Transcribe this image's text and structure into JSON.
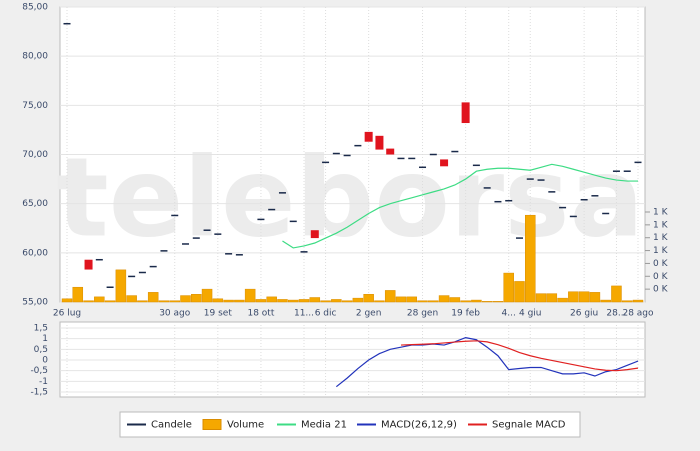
{
  "watermark": "teleborsa",
  "chart_data": [
    {
      "type": "candlestick",
      "categories": [
        "26 lug",
        null,
        null,
        null,
        null,
        null,
        null,
        null,
        null,
        null,
        "30 ago",
        null,
        null,
        null,
        "19 set",
        null,
        null,
        null,
        "18 ott",
        null,
        null,
        null,
        "11...",
        null,
        "6 dic",
        null,
        null,
        null,
        "2 gen",
        null,
        null,
        null,
        null,
        "28 gen",
        null,
        null,
        null,
        "19 feb",
        null,
        null,
        null,
        "4...",
        null,
        "4 giu",
        null,
        null,
        null,
        null,
        "26 giu",
        null,
        null,
        "28...",
        null,
        "28 ago"
      ],
      "ylim": [
        55,
        85
      ],
      "yticks": [
        {
          "value": 55,
          "label": "55,00"
        },
        {
          "value": 60,
          "label": "60,00"
        },
        {
          "value": 65,
          "label": "65,00"
        },
        {
          "value": 70,
          "label": "70,00"
        },
        {
          "value": 75,
          "label": "75,00"
        },
        {
          "value": 80,
          "label": "80,00"
        },
        {
          "value": 85,
          "label": "85,00"
        }
      ],
      "y2lim": [
        0,
        1400
      ],
      "y2ticks": [
        {
          "value": 200,
          "label": "0 K"
        },
        {
          "value": 400,
          "label": "0 K"
        },
        {
          "value": 600,
          "label": "0 K"
        },
        {
          "value": 800,
          "label": "1 K"
        },
        {
          "value": 1000,
          "label": "1 K"
        },
        {
          "value": 1200,
          "label": "1 K"
        },
        {
          "value": 1400,
          "label": "1 K"
        }
      ],
      "grid": true,
      "series": [
        {
          "name": "Candele",
          "kind": "candle",
          "color": "#1a2a4a",
          "down_color": "#e0141e",
          "open": [
            83.3,
            null,
            59.3,
            59.3,
            56.5,
            null,
            57.6,
            58.0,
            58.6,
            60.2,
            63.8,
            60.9,
            61.5,
            62.3,
            61.9,
            59.9,
            59.8,
            null,
            63.4,
            64.4,
            66.1,
            63.2,
            60.1,
            62.3,
            69.2,
            70.1,
            69.9,
            70.9,
            72.3,
            71.9,
            70.6,
            69.6,
            69.6,
            68.7,
            70.0,
            69.5,
            70.3,
            75.3,
            68.9,
            66.6,
            65.2,
            65.3,
            61.5,
            67.5,
            67.4,
            66.2,
            64.6,
            63.7,
            65.4,
            65.8,
            64.0,
            68.3,
            68.3,
            69.2
          ],
          "close": [
            83.3,
            null,
            58.3,
            59.3,
            56.5,
            null,
            57.6,
            58.0,
            58.6,
            60.2,
            63.8,
            60.9,
            61.5,
            62.3,
            61.9,
            59.9,
            59.8,
            null,
            63.4,
            64.4,
            66.1,
            63.2,
            60.1,
            61.5,
            69.2,
            70.1,
            69.9,
            70.9,
            71.3,
            70.5,
            70.0,
            69.6,
            69.6,
            68.7,
            70.0,
            68.8,
            70.3,
            73.2,
            68.9,
            66.6,
            65.2,
            65.3,
            61.5,
            67.5,
            67.4,
            66.2,
            64.6,
            63.7,
            65.4,
            65.8,
            64.0,
            68.3,
            68.3,
            69.2
          ]
        },
        {
          "name": "Volume",
          "kind": "volume",
          "axis": "y2",
          "color": "#f5a800",
          "values": [
            50,
            230,
            20,
            80,
            20,
            500,
            100,
            20,
            150,
            20,
            20,
            100,
            120,
            200,
            50,
            30,
            30,
            200,
            40,
            80,
            40,
            30,
            40,
            70,
            20,
            40,
            20,
            60,
            120,
            20,
            180,
            80,
            80,
            20,
            20,
            100,
            70,
            20,
            30,
            10,
            10,
            450,
            320,
            1350,
            130,
            130,
            60,
            160,
            160,
            150,
            30,
            250,
            20,
            30
          ]
        },
        {
          "name": "Media 21",
          "kind": "line",
          "color": "#3ddc84",
          "values": [
            null,
            null,
            null,
            null,
            null,
            null,
            null,
            null,
            null,
            null,
            null,
            null,
            null,
            null,
            null,
            null,
            null,
            null,
            null,
            null,
            61.2,
            60.5,
            60.7,
            61.0,
            61.5,
            62.0,
            62.6,
            63.3,
            64.0,
            64.6,
            65.0,
            65.3,
            65.6,
            65.9,
            66.2,
            66.5,
            66.9,
            67.5,
            68.3,
            68.5,
            68.6,
            68.6,
            68.5,
            68.4,
            68.7,
            69.0,
            68.8,
            68.5,
            68.2,
            67.9,
            67.6,
            67.4,
            67.3,
            67.3
          ]
        }
      ]
    },
    {
      "type": "line",
      "ylim": [
        -1.5,
        1.5
      ],
      "yticks": [
        {
          "value": -1.5,
          "label": "-1,5"
        },
        -1,
        {
          "value": -0.5,
          "label": "-0,5"
        },
        0,
        {
          "value": 0.5,
          "label": "0,5"
        },
        1,
        {
          "value": 1.5,
          "label": "1,5"
        }
      ],
      "series": [
        {
          "name": "MACD(26,12,9)",
          "color": "#2233bb",
          "values": [
            null,
            null,
            null,
            null,
            null,
            null,
            null,
            null,
            null,
            null,
            null,
            null,
            null,
            null,
            null,
            null,
            null,
            null,
            null,
            null,
            null,
            null,
            null,
            null,
            null,
            -1.25,
            -0.85,
            -0.4,
            0.0,
            0.3,
            0.5,
            0.6,
            0.7,
            0.7,
            0.75,
            0.7,
            0.85,
            1.05,
            0.95,
            0.6,
            0.2,
            -0.45,
            -0.4,
            -0.35,
            -0.35,
            -0.5,
            -0.65,
            -0.65,
            -0.6,
            -0.75,
            -0.55,
            -0.45,
            -0.25,
            -0.05
          ]
        },
        {
          "name": "Segnale MACD",
          "color": "#e02020",
          "values": [
            null,
            null,
            null,
            null,
            null,
            null,
            null,
            null,
            null,
            null,
            null,
            null,
            null,
            null,
            null,
            null,
            null,
            null,
            null,
            null,
            null,
            null,
            null,
            null,
            null,
            null,
            null,
            null,
            null,
            null,
            null,
            0.7,
            0.72,
            0.74,
            0.76,
            0.8,
            0.84,
            0.88,
            0.9,
            0.85,
            0.72,
            0.55,
            0.35,
            0.2,
            0.08,
            -0.02,
            -0.12,
            -0.22,
            -0.32,
            -0.42,
            -0.48,
            -0.5,
            -0.45,
            -0.38
          ]
        }
      ]
    }
  ]
}
